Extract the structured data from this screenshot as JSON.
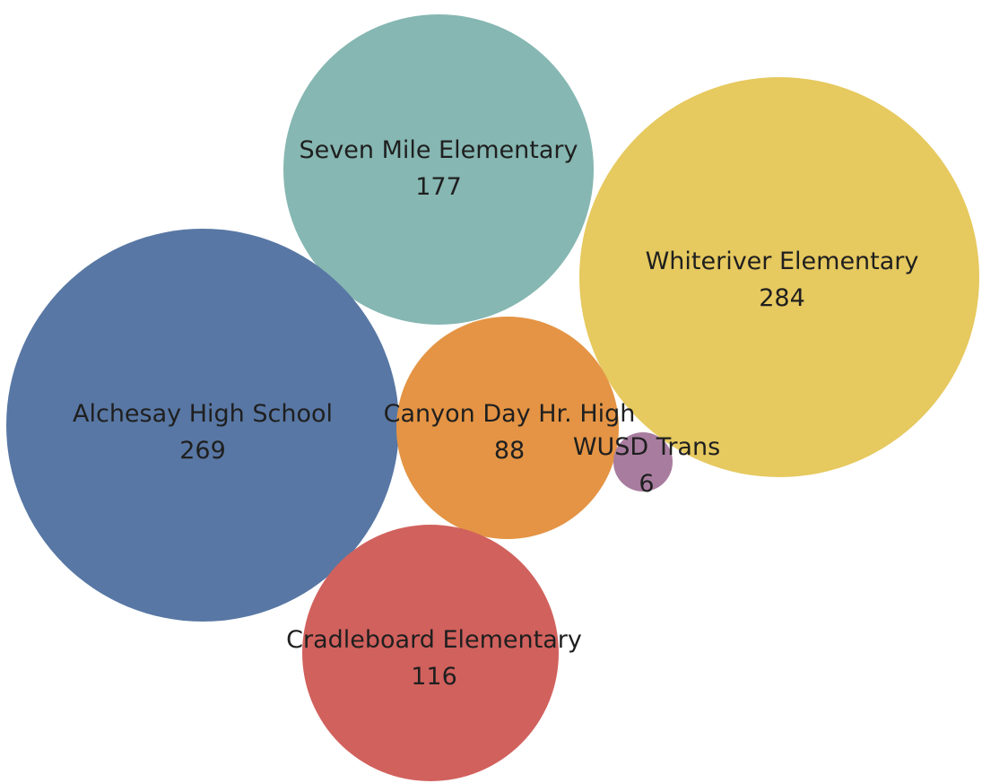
{
  "chart_data": {
    "type": "bubble",
    "title": "",
    "bubbles": [
      {
        "label": "Seven Mile Elementary",
        "value": 177,
        "color": "#86b7b2"
      },
      {
        "label": "Whiteriver Elementary",
        "value": 284,
        "color": "#e6c95f"
      },
      {
        "label": "Alchesay High School",
        "value": 269,
        "color": "#5877a4"
      },
      {
        "label": "Canyon Day Hr. High",
        "value": 88,
        "color": "#e49444"
      },
      {
        "label": "WUSD Trans",
        "value": 6,
        "color": "#a87c9f"
      },
      {
        "label": "Cradleboard Elementary",
        "value": 116,
        "color": "#d1615d"
      }
    ]
  }
}
